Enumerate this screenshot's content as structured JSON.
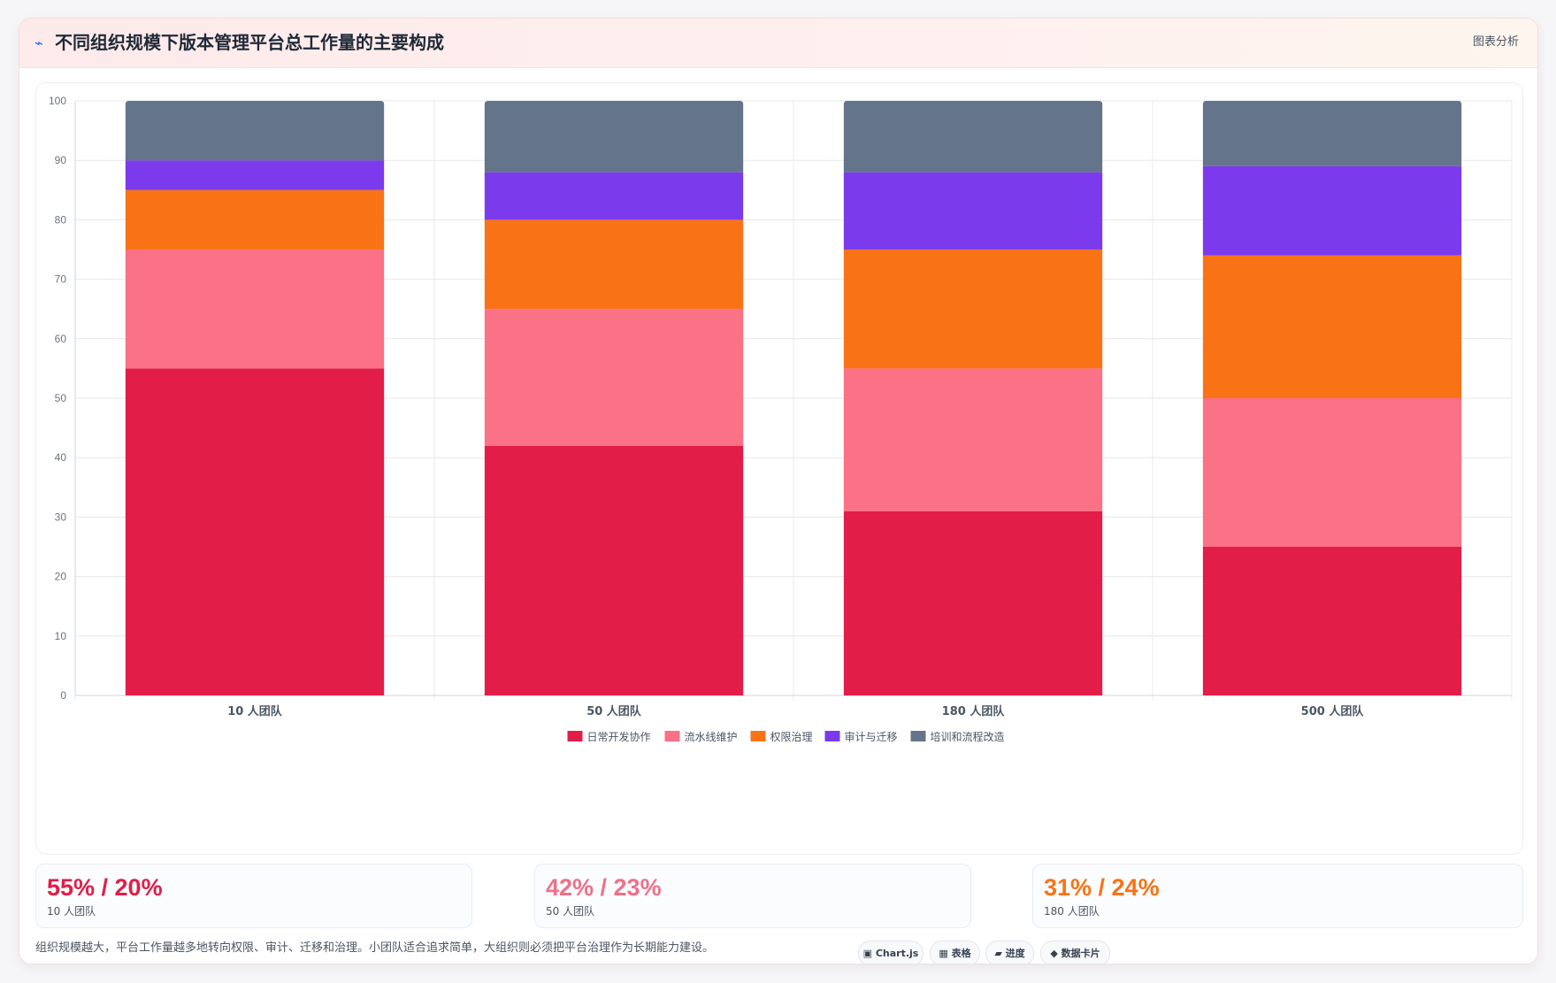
{
  "header": {
    "icon": "chart-icon",
    "icon_glyph": "⌁",
    "title": "不同组织规模下版本管理平台总工作量的主要构成",
    "action_label": "图表分析"
  },
  "chart_data": {
    "type": "bar",
    "stacked": true,
    "title": "",
    "xlabel": "",
    "ylabel": "",
    "ylim": [
      0,
      100
    ],
    "yticks": [
      0,
      10,
      20,
      30,
      40,
      50,
      60,
      70,
      80,
      90,
      100
    ],
    "grid": true,
    "legend_position": "bottom",
    "categories": [
      "10 人团队",
      "50 人团队",
      "180 人团队",
      "500 人团队"
    ],
    "series": [
      {
        "name": "日常开发协作",
        "color": "#e11d48",
        "values": [
          55,
          42,
          31,
          25
        ]
      },
      {
        "name": "流水线维护",
        "color": "#fb7185",
        "values": [
          20,
          23,
          24,
          25
        ]
      },
      {
        "name": "权限治理",
        "color": "#f97316",
        "values": [
          10,
          15,
          20,
          24
        ]
      },
      {
        "name": "审计与迁移",
        "color": "#7c3aed",
        "values": [
          5,
          8,
          13,
          15
        ]
      },
      {
        "name": "培训和流程改造",
        "color": "#64748b",
        "values": [
          10,
          12,
          12,
          11
        ]
      }
    ]
  },
  "stats": [
    {
      "value": "55% / 20%",
      "label": "10 人团队",
      "color": "#e11d48"
    },
    {
      "value": "42% / 23%",
      "label": "50 人团队",
      "color": "#f0708a"
    },
    {
      "value": "31% / 24%",
      "label": "180 人团队",
      "color": "#f97316"
    }
  ],
  "footer": {
    "note": "组织规模越大，平台工作量越多地转向权限、审计、迁移和治理。小团队适合追求简单，大组织则必须把平台治理作为长期能力建设。"
  },
  "chips": [
    {
      "icon": "chart-box-icon",
      "label": "▣ Chart.js"
    },
    {
      "icon": "table-icon",
      "label": "▦ 表格"
    },
    {
      "icon": "progress-icon",
      "label": "▰ 进度"
    },
    {
      "icon": "data-card-icon",
      "label": "◆ 数据卡片"
    }
  ]
}
